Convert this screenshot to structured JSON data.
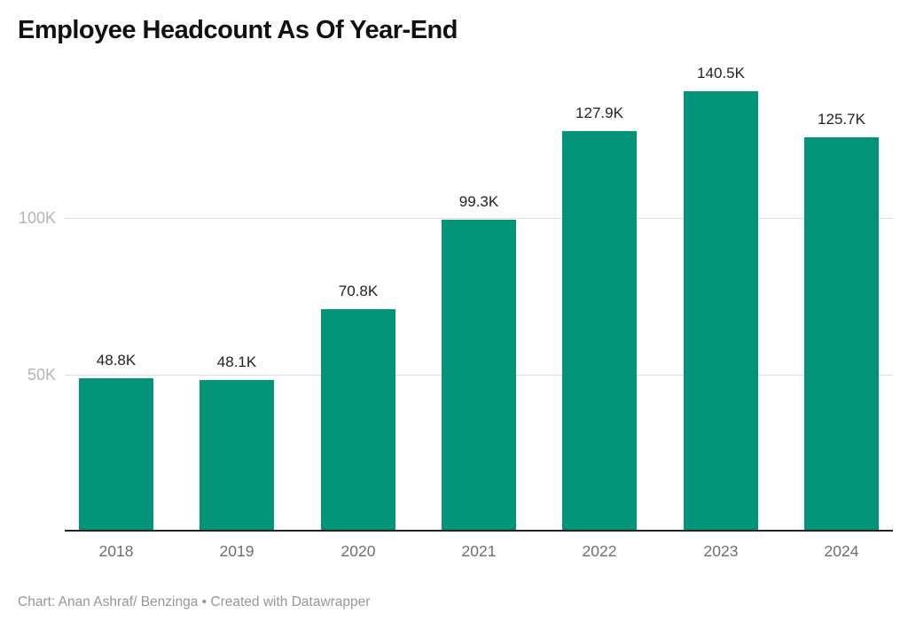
{
  "title": "Employee Headcount As Of Year-End",
  "footer": {
    "credit": "Chart: Anan Ashraf/ Benzinga • Created with Datawrapper"
  },
  "colors": {
    "background": "#ffffff",
    "bar": "#019478",
    "title_text": "#111111",
    "value_label_text": "#222222",
    "x_tick_text": "#6e6e6e",
    "y_tick_text": "#b4b4b4",
    "gridline": "#dddddd",
    "baseline": "#222222",
    "footer_text": "#979797"
  },
  "chart_data": {
    "type": "bar",
    "title": "Employee Headcount As Of Year-End",
    "categories": [
      "2018",
      "2019",
      "2020",
      "2021",
      "2022",
      "2023",
      "2024"
    ],
    "values": [
      48800,
      48100,
      70800,
      99300,
      127900,
      140500,
      125700
    ],
    "value_labels": [
      "48.8K",
      "48.1K",
      "70.8K",
      "99.3K",
      "127.9K",
      "140.5K",
      "125.7K"
    ],
    "xlabel": "",
    "ylabel": "",
    "ylim": [
      0,
      152000
    ],
    "y_ticks": [
      50000,
      100000
    ],
    "y_tick_labels": [
      "50K",
      "100K"
    ],
    "grid": "horizontal-only",
    "legend": "none",
    "bar_color": "#019478"
  }
}
